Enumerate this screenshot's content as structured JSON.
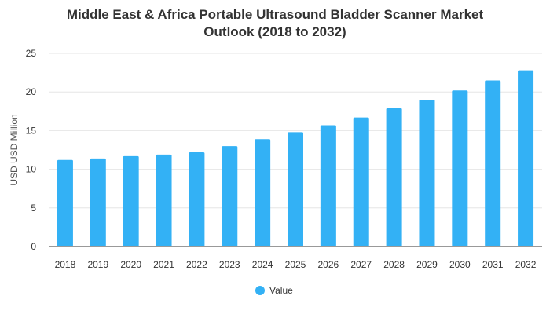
{
  "chart_data": {
    "type": "bar",
    "title_line1": "Middle East & Africa Portable Ultrasound Bladder Scanner Market",
    "title_line2": "Outlook (2018 to 2032)",
    "xlabel": "",
    "ylabel": "USD USD Million",
    "categories": [
      "2018",
      "2019",
      "2020",
      "2021",
      "2022",
      "2023",
      "2024",
      "2025",
      "2026",
      "2027",
      "2028",
      "2029",
      "2030",
      "2031",
      "2032"
    ],
    "series": [
      {
        "name": "Value",
        "color": "#33b1f5",
        "values": [
          11.2,
          11.4,
          11.7,
          11.9,
          12.2,
          13.0,
          13.9,
          14.8,
          15.7,
          16.7,
          17.9,
          19.0,
          20.2,
          21.5,
          22.8
        ]
      }
    ],
    "ylim": [
      0,
      25
    ],
    "yticks": [
      0,
      5,
      10,
      15,
      20,
      25
    ],
    "grid": true,
    "legend_position": "bottom-center"
  }
}
